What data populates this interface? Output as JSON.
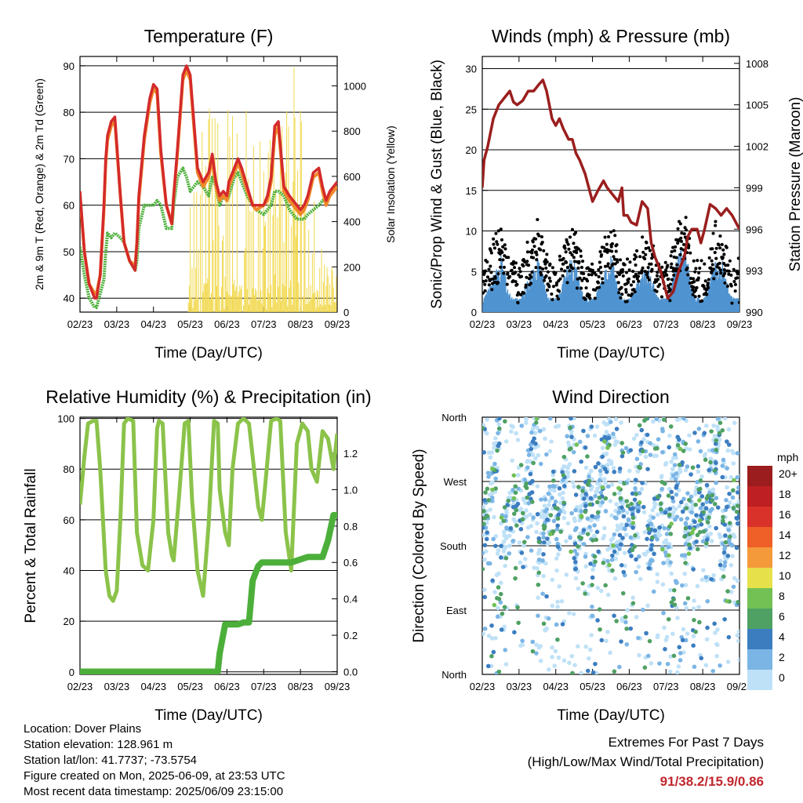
{
  "colors": {
    "red": "#d42a2a",
    "orange": "#f0882a",
    "green": "#4caf3a",
    "yellow": "#f2d94e",
    "black": "#000000",
    "blue": "#4f93d0",
    "maroon": "#9b1e1e",
    "rh_green": "#8bc34a",
    "precip_green": "#4caf3a"
  },
  "x_ticks": [
    "02/23",
    "03/23",
    "04/23",
    "05/23",
    "06/23",
    "07/23",
    "08/23",
    "09/23"
  ],
  "chart_data": [
    {
      "type": "line",
      "title": "Temperature (F)",
      "xlabel": "Time (Day/UTC)",
      "ylabel": "2m & 9m T (Red, Orange) & 2m Td (Green)",
      "ylabel_right": "Solar Insolation (Yellow)",
      "ylim": [
        37,
        92
      ],
      "yticks": [
        40,
        50,
        60,
        70,
        80,
        90
      ],
      "ylim_right": [
        0,
        1130
      ],
      "yticks_right": [
        0,
        200,
        400,
        600,
        800,
        1000
      ],
      "x": [
        0,
        0.12,
        0.25,
        0.4,
        0.45,
        0.55,
        0.65,
        0.7,
        0.75,
        0.85,
        0.95,
        1.1,
        1.2,
        1.35,
        1.5,
        1.55,
        1.6,
        1.75,
        1.9,
        2.0,
        2.1,
        2.2,
        2.35,
        2.5,
        2.55,
        2.65,
        2.8,
        2.9,
        3.0,
        3.2,
        3.35,
        3.5,
        3.6,
        3.7,
        3.8,
        3.9,
        4.0,
        4.05,
        4.2,
        4.3,
        4.4,
        4.55,
        4.7,
        4.8,
        5.0,
        5.1,
        5.2,
        5.3,
        5.4,
        5.55,
        5.7,
        5.9,
        6.0,
        6.1,
        6.2,
        6.35,
        6.5,
        6.6,
        6.7,
        6.8,
        7.0
      ],
      "series": [
        {
          "name": "2m T",
          "color": "red",
          "values": [
            63,
            50,
            43,
            40,
            40,
            45,
            60,
            70,
            75,
            78,
            79,
            62,
            52,
            48,
            46,
            52,
            62,
            75,
            83,
            86,
            85,
            72,
            60,
            56,
            62,
            72,
            88,
            90,
            88,
            68,
            65,
            67,
            71,
            65,
            62,
            63,
            62,
            65,
            68,
            70,
            68,
            64,
            60,
            60,
            60,
            62,
            66,
            77,
            78,
            64,
            62,
            60,
            59,
            60,
            62,
            67,
            68,
            64,
            61,
            63,
            65
          ]
        },
        {
          "name": "9m T",
          "color": "orange",
          "values": [
            62,
            50,
            43,
            41,
            41,
            45,
            59,
            69,
            74,
            77,
            78,
            62,
            52,
            48,
            47,
            52,
            61,
            74,
            82,
            85,
            84,
            71,
            60,
            56,
            62,
            71,
            87,
            89,
            87,
            67,
            64,
            66,
            70,
            64,
            61,
            62,
            61,
            64,
            67,
            69,
            67,
            63,
            60,
            59,
            60,
            61,
            65,
            75,
            77,
            63,
            61,
            59,
            58,
            59,
            61,
            66,
            67,
            63,
            60,
            62,
            64
          ]
        },
        {
          "name": "2m Td",
          "color": "green",
          "values": [
            51,
            45,
            40,
            38,
            38,
            41,
            44,
            50,
            54,
            53,
            54,
            53,
            52,
            48,
            46,
            48,
            55,
            60,
            60,
            60,
            61,
            60,
            55,
            55,
            60,
            66,
            68,
            66,
            63,
            65,
            64,
            62,
            66,
            64,
            60,
            62,
            61,
            62,
            66,
            67,
            65,
            62,
            60,
            59,
            58,
            59,
            60,
            63,
            63,
            62,
            59,
            57,
            57,
            57,
            58,
            59,
            60,
            61,
            61,
            62,
            64
          ]
        }
      ]
    },
    {
      "type": "line",
      "title": "Winds (mph) & Pressure (mb)",
      "xlabel": "Time (Day/UTC)",
      "ylabel": "Sonic/Prop Wind & Gust (Blue, Black)",
      "ylabel_right": "Station Pressure (Maroon)",
      "ylim": [
        0,
        31.5
      ],
      "yticks": [
        0,
        5,
        10,
        15,
        20,
        25,
        30
      ],
      "ylim_right": [
        990,
        1008.5
      ],
      "yticks_right": [
        990,
        993,
        996,
        999,
        1002,
        1005,
        1008
      ],
      "pressure_x": [
        0,
        0.05,
        0.15,
        0.3,
        0.45,
        0.6,
        0.75,
        0.85,
        0.95,
        1.1,
        1.25,
        1.4,
        1.55,
        1.65,
        1.75,
        1.9,
        2.0,
        2.1,
        2.2,
        2.35,
        2.45,
        2.55,
        2.65,
        2.8,
        2.9,
        3.0,
        3.15,
        3.3,
        3.4,
        3.55,
        3.7,
        3.8,
        3.85,
        3.95,
        4.05,
        4.2,
        4.35,
        4.5,
        4.6,
        4.7,
        4.85,
        4.95,
        5.05,
        5.2,
        5.35,
        5.5,
        5.6,
        5.7,
        5.85,
        5.95,
        6.05,
        6.2,
        6.35,
        6.5,
        6.65,
        6.8,
        7.0
      ],
      "pressure": [
        999,
        1001,
        1002,
        1004,
        1005,
        1005.5,
        1006,
        1005.2,
        1005,
        1005.3,
        1006,
        1006,
        1006.5,
        1006.8,
        1006,
        1004,
        1003.5,
        1004,
        1003.3,
        1002.5,
        1002.5,
        1001.5,
        1001,
        1000,
        999,
        998,
        998.8,
        999.5,
        999,
        998.5,
        998,
        999,
        997,
        997,
        996.5,
        996.3,
        998,
        997.5,
        995,
        994,
        993,
        992,
        991,
        991.5,
        993,
        994,
        995.5,
        996,
        996,
        995,
        996,
        997.8,
        997.5,
        997,
        997.5,
        997,
        996
      ]
    },
    {
      "type": "line",
      "title": "Relative Humidity (%) & Precipitation (in)",
      "xlabel": "Time (Day/UTC)",
      "ylabel": "Percent & Total Rainfall",
      "ylim": [
        -1,
        100.5
      ],
      "yticks": [
        0,
        20,
        40,
        60,
        80,
        100
      ],
      "ylim_right": [
        -0.015,
        1.398
      ],
      "yticks_right": [
        0.0,
        0.2,
        0.4,
        0.6,
        0.8,
        1.0,
        1.2
      ],
      "x": [
        0,
        0.12,
        0.22,
        0.35,
        0.45,
        0.55,
        0.7,
        0.8,
        0.9,
        1.0,
        1.1,
        1.2,
        1.3,
        1.45,
        1.55,
        1.7,
        1.85,
        2.0,
        2.1,
        2.15,
        2.25,
        2.4,
        2.5,
        2.55,
        2.7,
        2.85,
        2.95,
        3.05,
        3.2,
        3.35,
        3.5,
        3.65,
        3.75,
        3.8,
        3.95,
        4.05,
        4.15,
        4.3,
        4.45,
        4.6,
        4.7,
        4.85,
        4.95,
        5.05,
        5.2,
        5.35,
        5.45,
        5.6,
        5.7,
        5.75,
        5.9,
        6.05,
        6.2,
        6.3,
        6.45,
        6.6,
        6.75,
        6.9,
        7.0
      ],
      "series": [
        {
          "name": "RH",
          "color": "rh_green",
          "values": [
            66,
            85,
            98,
            99,
            99,
            80,
            40,
            30,
            28,
            32,
            60,
            98,
            100,
            99,
            55,
            42,
            40,
            60,
            96,
            99,
            98,
            55,
            46,
            44,
            70,
            98,
            99,
            68,
            40,
            30,
            58,
            99,
            98,
            72,
            55,
            50,
            80,
            98,
            100,
            98,
            85,
            65,
            60,
            75,
            99,
            100,
            99,
            55,
            45,
            40,
            90,
            98,
            95,
            80,
            75,
            95,
            92,
            80,
            94
          ]
        },
        {
          "name": "Total Rainfall",
          "color": "precip_green",
          "values": [
            0,
            0,
            0,
            0,
            0,
            0,
            0,
            0,
            0,
            0,
            0,
            0,
            0,
            0,
            0,
            0,
            0,
            0,
            0,
            0,
            0,
            0,
            0,
            0,
            0,
            0,
            0,
            0,
            0,
            0,
            0,
            0,
            0,
            0.1,
            0.26,
            0.26,
            0.26,
            0.26,
            0.27,
            0.27,
            0.5,
            0.58,
            0.6,
            0.6,
            0.6,
            0.6,
            0.6,
            0.6,
            0.6,
            0.6,
            0.61,
            0.62,
            0.63,
            0.63,
            0.63,
            0.63,
            0.72,
            0.86,
            0.86
          ]
        }
      ]
    },
    {
      "type": "scatter",
      "title": "Wind Direction",
      "xlabel": "Time (Day/UTC)",
      "ylabel": "Direction (Colored By Speed)",
      "yticks": [
        "North",
        "West",
        "South",
        "East",
        "North"
      ],
      "legend_title": "mph",
      "legend_labels": [
        "20+",
        "18",
        "16",
        "14",
        "12",
        "10",
        "8",
        "6",
        "4",
        "2",
        "0"
      ],
      "legend_colors": [
        "#9b1d1d",
        "#bd1f23",
        "#d9322b",
        "#ee6028",
        "#f59a3b",
        "#e6e14b",
        "#73c055",
        "#4fa163",
        "#3c7dc0",
        "#7bb5e5",
        "#bfe1f7"
      ]
    }
  ],
  "info": {
    "location": "Location: Dover Plains",
    "elevation": "Station elevation: 128.961 m",
    "latlon": "Station lat/lon: 41.7737; -73.5754",
    "created": "Figure created on Mon, 2025-06-09, at 23:53 UTC",
    "recent": "Most recent data timestamp: 2025/06/09 23:15:00"
  },
  "extremes": {
    "title": "Extremes For Past 7 Days",
    "subtitle": "(High/Low/Max Wind/Total Precipitation)",
    "values": "91/38.2/15.9/0.86"
  }
}
